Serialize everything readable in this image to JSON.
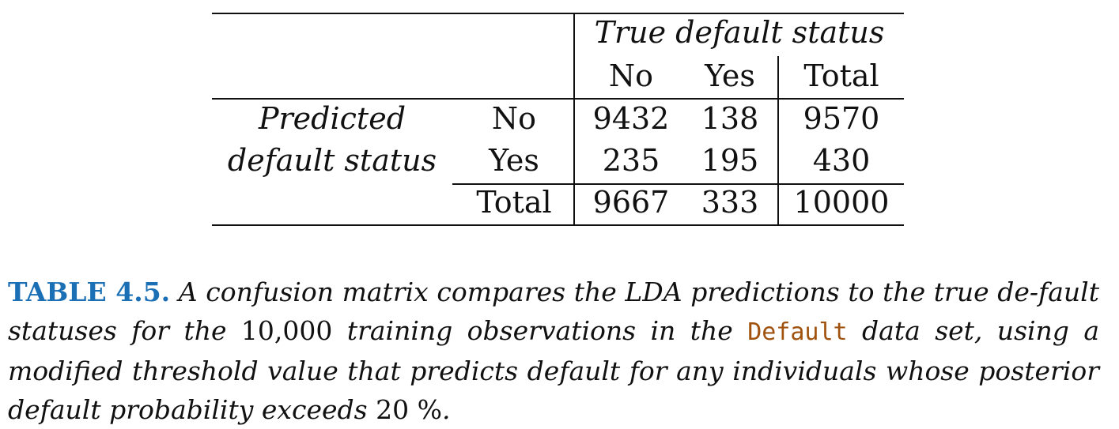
{
  "table": {
    "column_group_header": "True default status",
    "column_headers": [
      "No",
      "Yes",
      "Total"
    ],
    "row_group_header_line1": "Predicted",
    "row_group_header_line2": "default status",
    "rows": [
      {
        "label": "No",
        "values": [
          "9432",
          "138",
          "9570"
        ]
      },
      {
        "label": "Yes",
        "values": [
          "235",
          "195",
          "430"
        ]
      },
      {
        "label": "Total",
        "values": [
          "9667",
          "333",
          "10000"
        ]
      }
    ]
  },
  "caption": {
    "label": "TABLE 4.5.",
    "text_1": "A confusion matrix compares the LDA predictions to the true de-fault statuses for the",
    "number": "10,000",
    "text_2": "training observations in the",
    "code": "Default",
    "text_3": "data set, using a modified threshold value that predicts default for any individuals whose posterior default probability exceeds",
    "percent": "20 %",
    "end": "."
  }
}
